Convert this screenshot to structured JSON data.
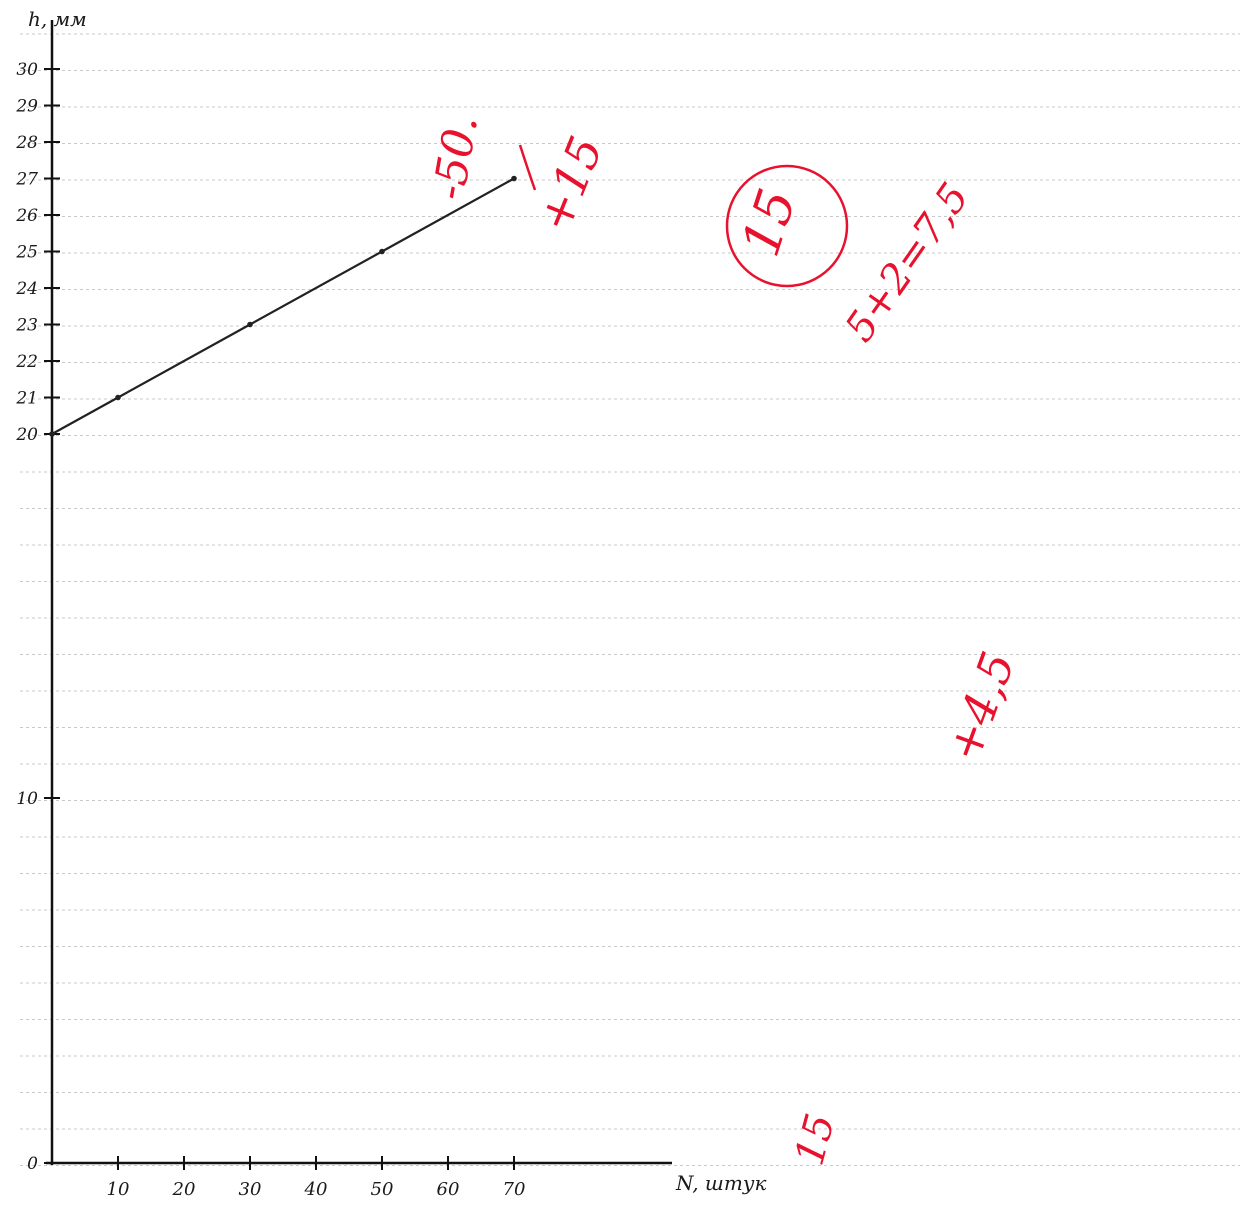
{
  "chart_data": {
    "type": "line",
    "title": "",
    "xlabel": "N, штук",
    "ylabel": "h, мм",
    "x_ticks": [
      "10",
      "20",
      "30",
      "40",
      "50",
      "60",
      "70"
    ],
    "y_ticks": [
      "0",
      "10",
      "20",
      "21",
      "22",
      "23",
      "24",
      "25",
      "26",
      "27",
      "28",
      "29",
      "30"
    ],
    "x": [
      0,
      10,
      30,
      50,
      70
    ],
    "y": [
      20,
      21,
      23,
      25,
      27
    ],
    "xlim": [
      0,
      70
    ],
    "ylim": [
      0,
      30
    ],
    "grid": true,
    "line_color": "#222222"
  },
  "annotations": {
    "color": "#e8122e",
    "marks": [
      "-50.",
      "+15",
      "15",
      "5+2=7,5",
      "+4,5",
      "15"
    ]
  }
}
